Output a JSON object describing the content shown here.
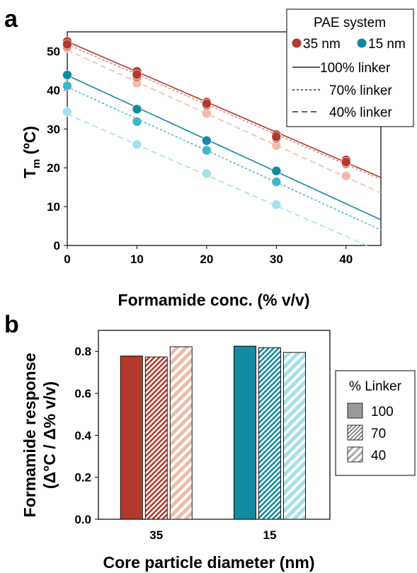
{
  "panel_a": {
    "letter": "a",
    "ylabel_main": "T",
    "ylabel_sub": "m",
    "ylabel_rest": " (ºC)",
    "legend": {
      "title": "PAE system",
      "size_35": "35 nm",
      "size_15": "15 nm",
      "l100": "100% linker",
      "l70": "70% linker",
      "l40": "40% linker"
    }
  },
  "panel_b": {
    "letter": "b",
    "legend_title": "% Linker",
    "legend_items": [
      "100",
      "70",
      "40"
    ]
  },
  "chart_data": [
    {
      "type": "scatter",
      "xlabel": "Formamide conc. (% v/v)",
      "ylabel": "Tm (ºC)",
      "xlim": [
        0,
        45
      ],
      "ylim": [
        0,
        55
      ],
      "xticks": [
        0,
        10,
        20,
        30,
        40
      ],
      "yticks": [
        0,
        10,
        20,
        30,
        40,
        50
      ],
      "grid": false,
      "legend_position": "top-right",
      "colors": {
        "35_100": "#b23a2e",
        "35_70": "#d98a76",
        "35_40": "#edbcaa",
        "15_100": "#138aa0",
        "15_70": "#42b5cc",
        "15_40": "#a5e0ec"
      },
      "series": [
        {
          "key": "35_100",
          "dash": "solid",
          "points": [
            [
              0,
              52.5
            ],
            [
              0,
              51.8
            ],
            [
              10,
              44.8
            ],
            [
              10,
              44.0
            ],
            [
              20,
              36.9
            ],
            [
              20,
              36.5
            ],
            [
              30,
              28.5
            ],
            [
              30,
              28.0
            ],
            [
              40,
              22.0
            ],
            [
              40,
              21.5
            ]
          ],
          "fit": [
            [
              0,
              52.5
            ],
            [
              45,
              17.5
            ]
          ]
        },
        {
          "key": "35_70",
          "dash": "short",
          "points": [
            [
              0,
              51.2
            ],
            [
              10,
              43.2
            ],
            [
              20,
              36.0
            ],
            [
              30,
              27.5
            ],
            [
              40,
              21.0
            ]
          ],
          "fit": [
            [
              0,
              51.8
            ],
            [
              45,
              17.0
            ]
          ]
        },
        {
          "key": "35_40",
          "dash": "long",
          "points": [
            [
              0,
              50.8
            ],
            [
              10,
              41.8
            ],
            [
              20,
              34.0
            ],
            [
              30,
              25.7
            ],
            [
              40,
              17.9
            ]
          ],
          "fit": [
            [
              0,
              50.3
            ],
            [
              45,
              13.5
            ]
          ]
        },
        {
          "key": "15_100",
          "dash": "solid",
          "points": [
            [
              0,
              43.9
            ],
            [
              10,
              35.1
            ],
            [
              20,
              27.0
            ],
            [
              30,
              19.2
            ]
          ],
          "fit": [
            [
              0,
              43.8
            ],
            [
              45,
              6.6
            ]
          ]
        },
        {
          "key": "15_70",
          "dash": "short",
          "points": [
            [
              0,
              41.1
            ],
            [
              10,
              31.9
            ],
            [
              20,
              24.5
            ],
            [
              30,
              16.4
            ]
          ],
          "fit": [
            [
              0,
              40.8
            ],
            [
              45,
              4.0
            ]
          ]
        },
        {
          "key": "15_40",
          "dash": "long",
          "points": [
            [
              0,
              34.4
            ],
            [
              10,
              26.0
            ],
            [
              20,
              18.5
            ],
            [
              30,
              10.5
            ]
          ],
          "fit": [
            [
              0,
              33.8
            ],
            [
              43,
              0
            ]
          ]
        }
      ]
    },
    {
      "type": "bar",
      "xlabel": "Core particle diameter (nm)",
      "ylabel_line1": "Formamide response",
      "ylabel_line2": "(Δ°C / Δ% v/v)",
      "categories": [
        "35",
        "15"
      ],
      "ylim": [
        0,
        0.9
      ],
      "yticks": [
        "0.0",
        "0.2",
        "0.4",
        "0.6",
        "0.8"
      ],
      "grid": false,
      "legend_position": "right",
      "series": [
        {
          "name": "100",
          "values": [
            0.778,
            0.825
          ],
          "colors": [
            "#b23a2e",
            "#138aa0"
          ],
          "pattern": "solid"
        },
        {
          "name": "70",
          "values": [
            0.773,
            0.817
          ],
          "colors": [
            "#b23a2e",
            "#138aa0"
          ],
          "pattern": "dense-hatch"
        },
        {
          "name": "40",
          "values": [
            0.822,
            0.795
          ],
          "colors": [
            "#edbcaa",
            "#a5e0ec"
          ],
          "pattern": "wide-hatch"
        }
      ]
    }
  ]
}
